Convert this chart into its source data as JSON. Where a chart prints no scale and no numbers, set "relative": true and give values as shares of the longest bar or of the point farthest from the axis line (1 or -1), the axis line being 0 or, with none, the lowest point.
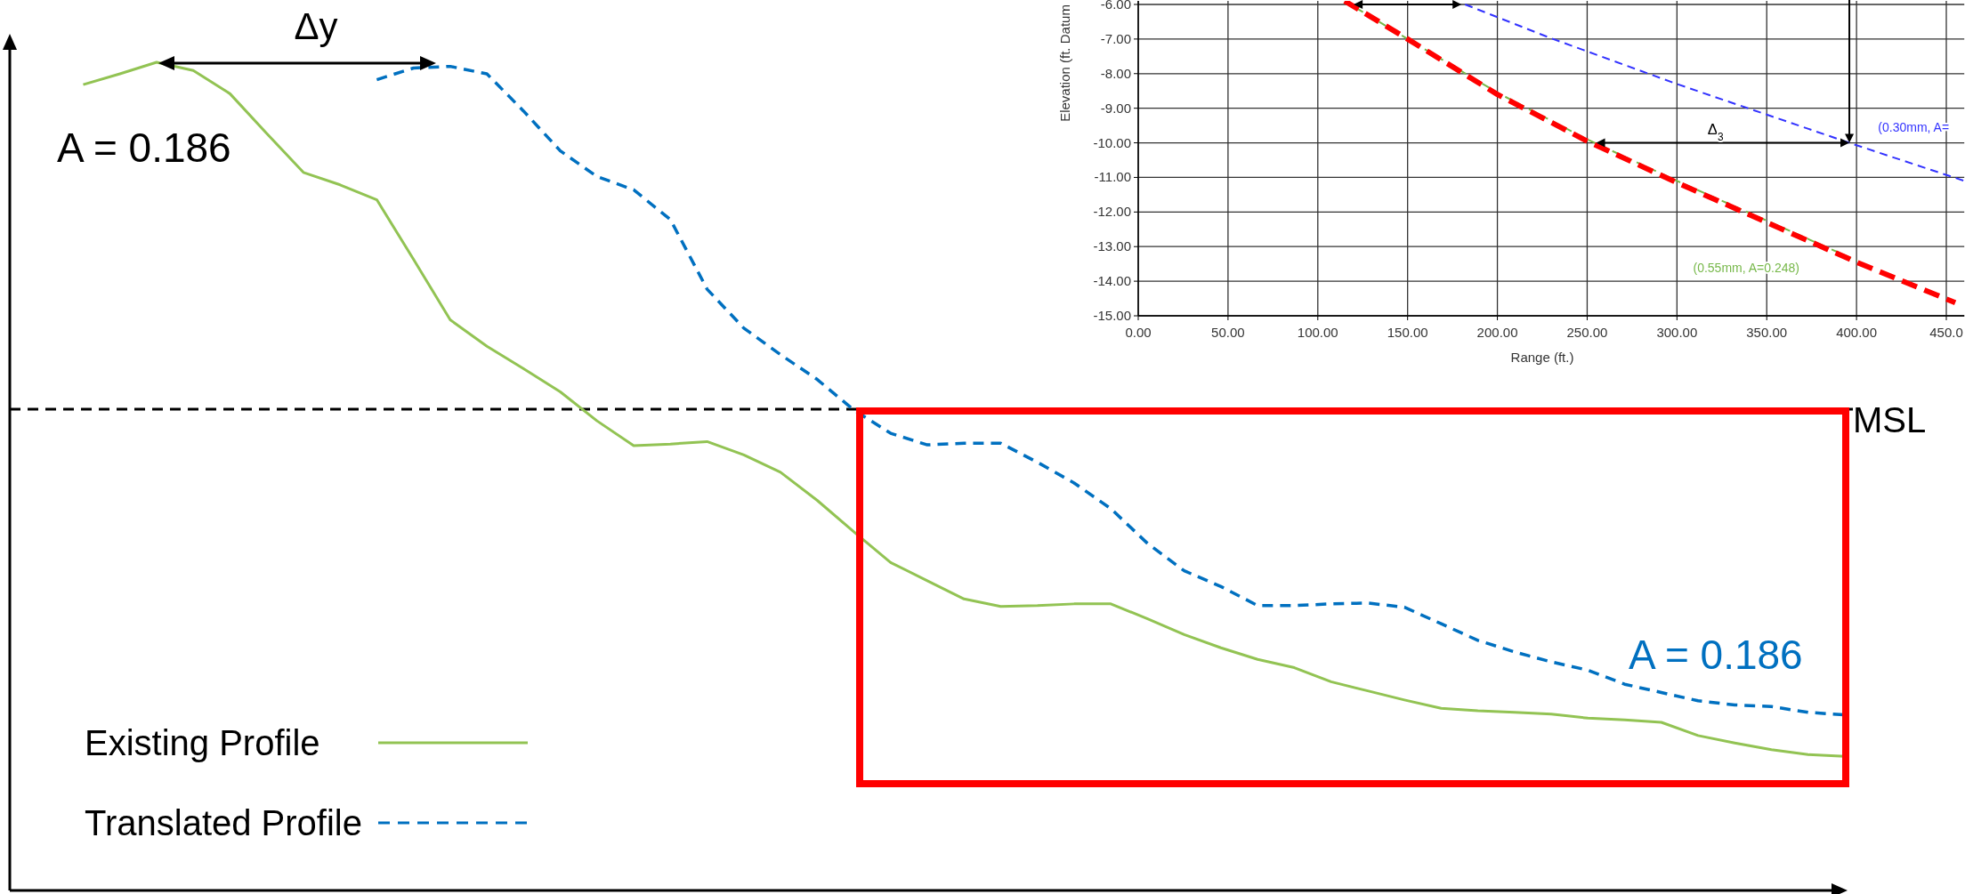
{
  "chart_data": [
    {
      "type": "line",
      "relative": true,
      "legend": "bottom left",
      "categories": [
        null,
        null,
        null,
        null,
        null,
        null,
        null,
        null,
        null,
        null,
        null,
        null,
        null,
        null,
        null,
        null,
        null,
        null,
        null,
        null,
        null,
        null,
        null,
        null,
        null,
        null,
        null,
        null,
        null,
        null,
        null,
        null,
        null,
        null,
        null,
        null,
        null,
        null,
        null,
        null,
        null,
        null,
        null,
        null,
        null,
        null,
        null,
        null,
        null,
        null,
        null
      ],
      "series": [
        {
          "name": "Existing Profile",
          "color": "#92c353",
          "line_style": "solid",
          "values": [
            null,
            null,
            0.973,
            0.986,
            1,
            0.99,
            0.962,
            0.914,
            0.867,
            0.852,
            0.834,
            0.762,
            0.689,
            0.657,
            0.63,
            0.602,
            0.567,
            0.537,
            0.539,
            0.542,
            0.526,
            0.505,
            0.471,
            0.433,
            0.396,
            0.374,
            0.352,
            0.343,
            0.344,
            0.346,
            0.346,
            0.328,
            0.309,
            0.293,
            0.279,
            0.269,
            0.252,
            0.241,
            0.23,
            0.22,
            0.217,
            0.215,
            0.213,
            0.208,
            0.206,
            0.203,
            0.187,
            0.178,
            0.17,
            0.164,
            0.162
          ]
        },
        {
          "name": "Translated Profile",
          "color": "#0070c0",
          "line_style": "dashed",
          "values": [
            null,
            null,
            null,
            null,
            null,
            null,
            null,
            null,
            null,
            null,
            0.979,
            0.993,
            0.995,
            0.986,
            0.941,
            0.893,
            0.862,
            0.846,
            0.81,
            0.726,
            0.679,
            0.647,
            0.617,
            0.58,
            0.552,
            0.538,
            0.54,
            0.54,
            0.517,
            0.492,
            0.461,
            0.419,
            0.386,
            0.367,
            0.344,
            0.344,
            0.346,
            0.347,
            0.342,
            0.322,
            0.302,
            0.288,
            0.276,
            0.266,
            0.249,
            0.239,
            0.229,
            0.224,
            0.222,
            0.215,
            0.212
          ]
        }
      ],
      "ref_lines": [
        {
          "axis": "y",
          "value": 0.581,
          "label": "MSL",
          "color": "#000000",
          "line_style": "dashed"
        }
      ],
      "annotations": [
        "Δy",
        "A = 0.186",
        "A = 0.186"
      ]
    },
    {
      "type": "line",
      "xlabel": "Range (ft.)",
      "ylabel": "Elevation (ft. Datum",
      "grid": true,
      "xlim": [
        0,
        460
      ],
      "ylim": [
        -15,
        -5.9
      ],
      "xticks": [
        {
          "value": 0,
          "label": "0.00"
        },
        {
          "value": 50,
          "label": "50.00"
        },
        {
          "value": 100,
          "label": "100.00"
        },
        {
          "value": 150,
          "label": "150.00"
        },
        {
          "value": 200,
          "label": "200.00"
        },
        {
          "value": 250,
          "label": "250.00"
        },
        {
          "value": 300,
          "label": "300.00"
        },
        {
          "value": 350,
          "label": "350.00"
        },
        {
          "value": 400,
          "label": "400.00"
        },
        {
          "value": 450,
          "label": "450.0"
        }
      ],
      "yticks": [
        {
          "value": -15,
          "label": "-15.00"
        },
        {
          "value": -14,
          "label": "-14.00"
        },
        {
          "value": -13,
          "label": "-13.00"
        },
        {
          "value": -12,
          "label": "-12.00"
        },
        {
          "value": -11,
          "label": "-11.00"
        },
        {
          "value": -10,
          "label": "-10.00"
        },
        {
          "value": -9,
          "label": "-9.00"
        },
        {
          "value": -8,
          "label": "-8.00"
        },
        {
          "value": -7,
          "label": "-7.00"
        },
        {
          "value": -6,
          "label": "-6.00"
        }
      ],
      "series": [
        {
          "color": "#77b84a",
          "line_style": "dashed",
          "x": [
            115,
            150,
            200,
            250,
            300,
            350,
            400
          ],
          "values": [
            -5.9,
            -7.0,
            -8.55,
            -9.9,
            -11.1,
            -12.25,
            -13.4
          ]
        },
        {
          "color": "#ff0000",
          "line_style": "dashed",
          "x": [
            115,
            150,
            200,
            250,
            300,
            350,
            400,
            455
          ],
          "values": [
            -5.9,
            -7.0,
            -8.6,
            -9.95,
            -11.15,
            -12.3,
            -13.45,
            -14.62
          ]
        },
        {
          "color": "#3333ff",
          "line_style": "dashed",
          "x": [
            182,
            230,
            300,
            396,
            460
          ],
          "values": [
            -6.0,
            -6.98,
            -8.3,
            -10.0,
            -11.1
          ]
        }
      ],
      "annotations": [
        "Δ$_{3}$",
        "(0.30mm, A=",
        "(0.55mm, A=0.248)"
      ]
    }
  ]
}
